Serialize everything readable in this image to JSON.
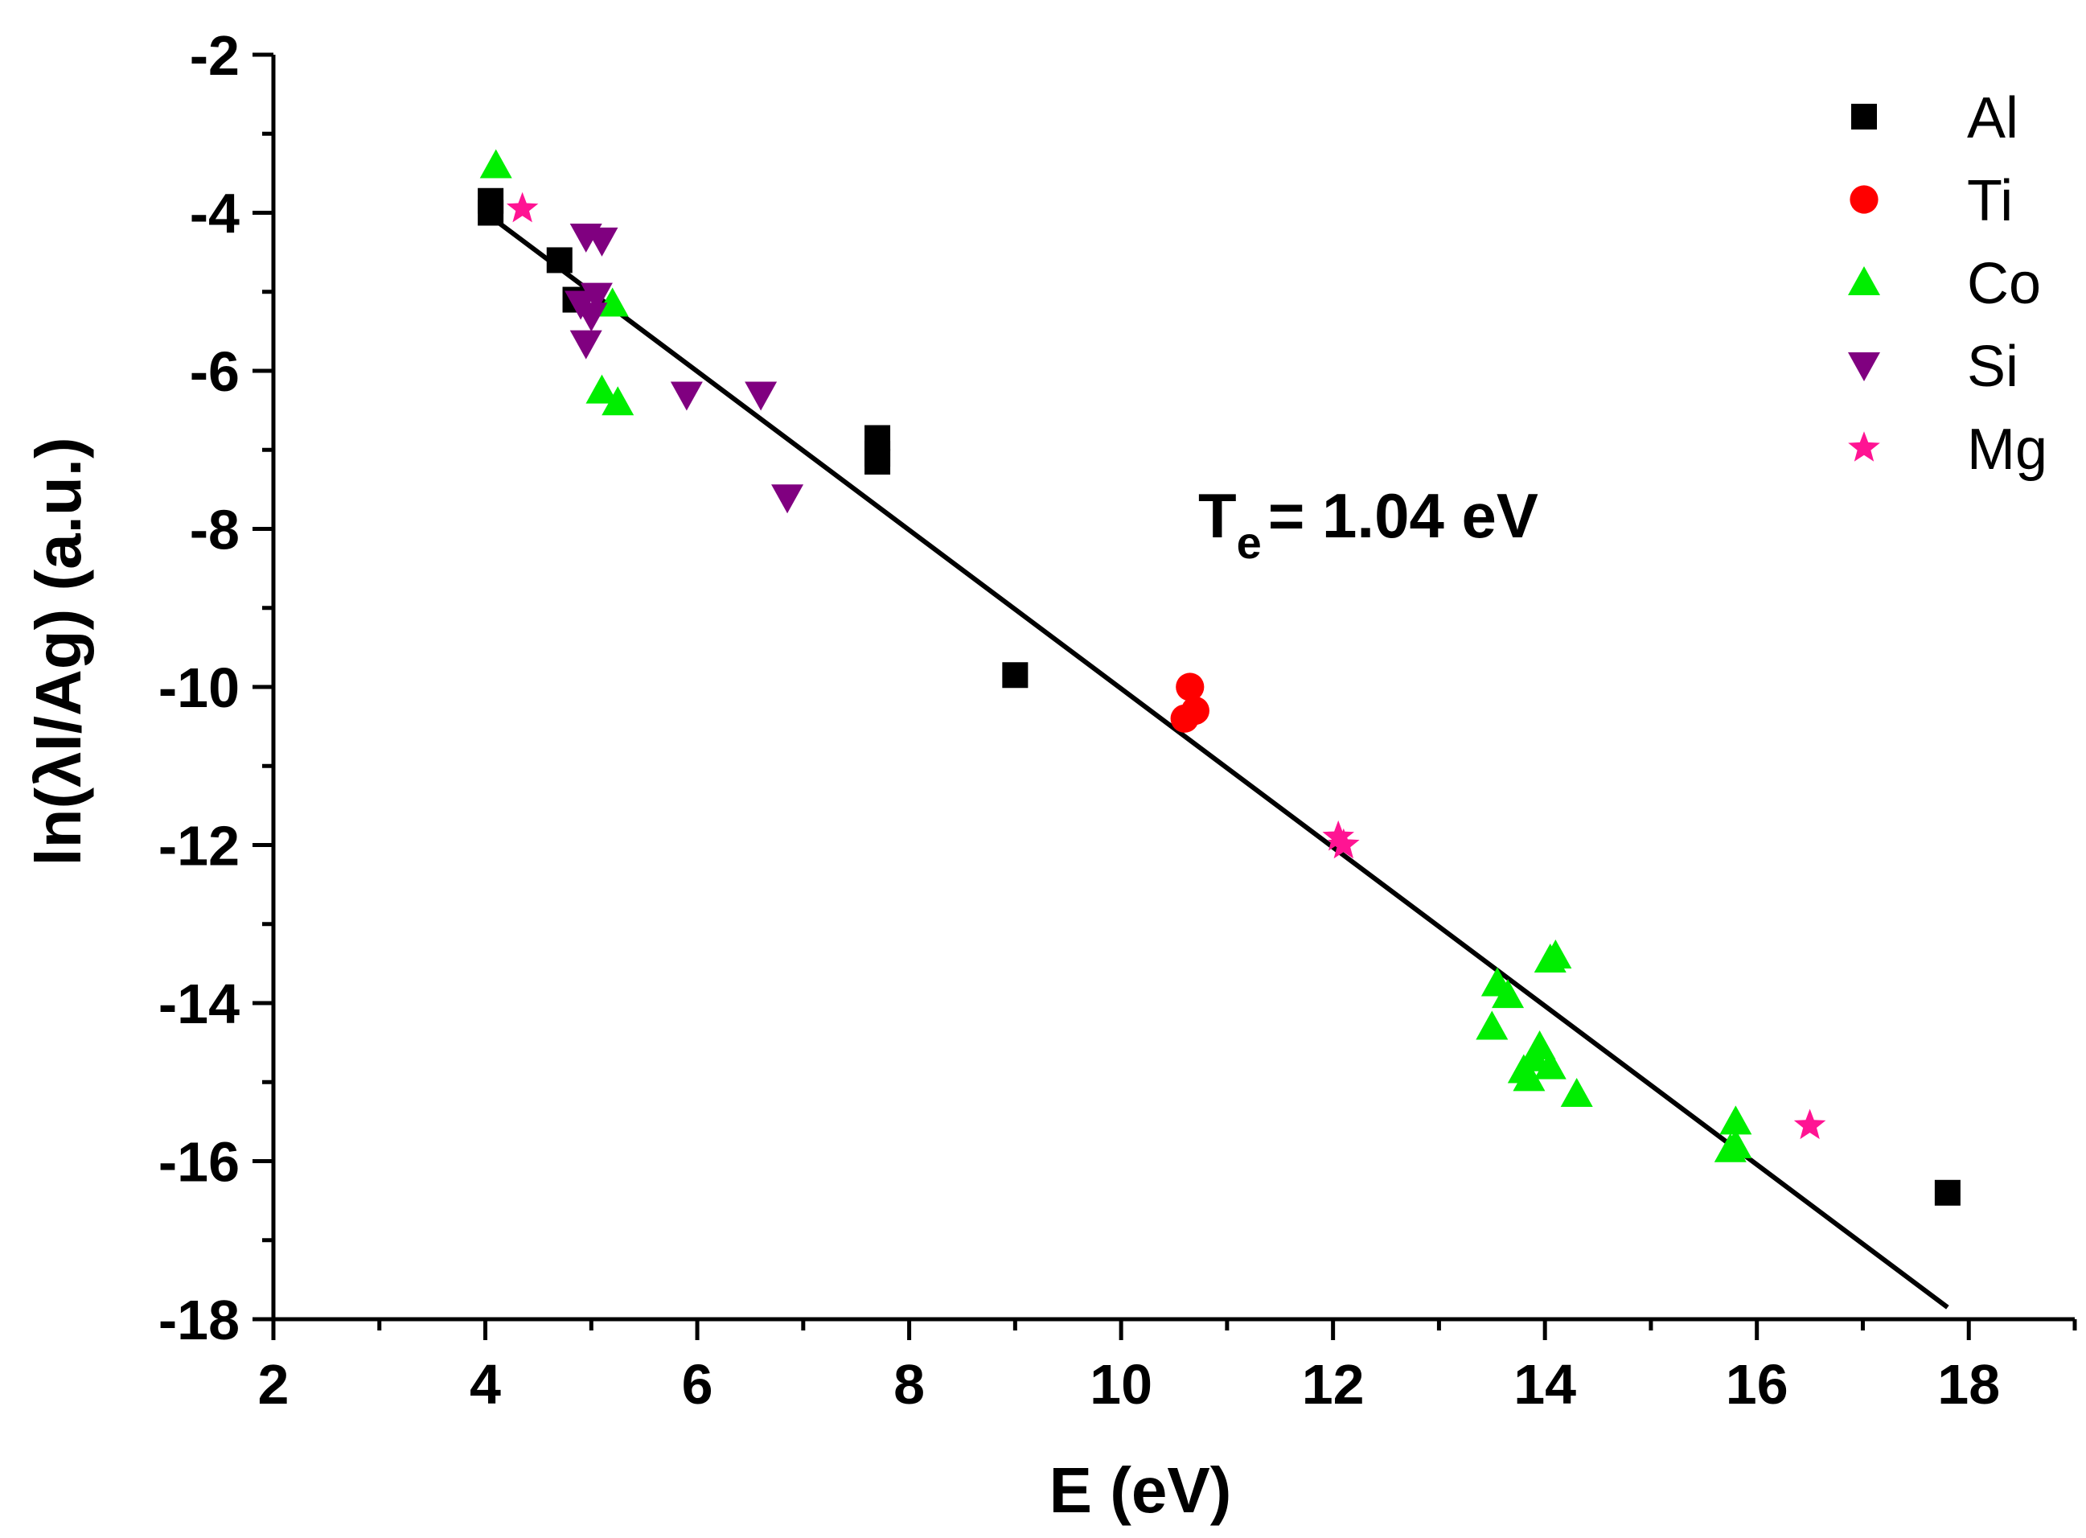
{
  "chart_data": {
    "type": "scatter",
    "title": "",
    "xlabel": "E (eV)",
    "ylabel": "ln(λI/Ag) (a.u.)",
    "xlim": [
      2,
      19
    ],
    "ylim": [
      -18,
      -2
    ],
    "xticks": [
      2,
      4,
      6,
      8,
      10,
      12,
      14,
      16,
      18
    ],
    "yticks": [
      -18,
      -16,
      -14,
      -12,
      -10,
      -8,
      -6,
      -4,
      -2
    ],
    "grid": false,
    "legend_position": "top-right",
    "annotation": {
      "main": "T",
      "sub": "e",
      "rest": "= 1.04 eV"
    },
    "fit_line": {
      "name": "linear fit",
      "x": [
        4.0,
        17.8
      ],
      "y": [
        -4.0,
        -17.85
      ],
      "color": "#000000"
    },
    "series": [
      {
        "name": "Al",
        "marker": "square",
        "color": "#000000",
        "points": [
          [
            4.05,
            -3.85
          ],
          [
            4.05,
            -4.0
          ],
          [
            4.7,
            -4.6
          ],
          [
            4.85,
            -5.1
          ],
          [
            7.7,
            -6.85
          ],
          [
            7.7,
            -7.05
          ],
          [
            7.7,
            -7.15
          ],
          [
            9.0,
            -9.85
          ],
          [
            17.8,
            -16.4
          ]
        ]
      },
      {
        "name": "Ti",
        "marker": "circle",
        "color": "#ff0000",
        "points": [
          [
            10.65,
            -10.0
          ],
          [
            10.7,
            -10.3
          ],
          [
            10.6,
            -10.4
          ]
        ]
      },
      {
        "name": "Co",
        "marker": "triangle-up",
        "color": "#00ee00",
        "points": [
          [
            4.1,
            -3.4
          ],
          [
            5.2,
            -5.15
          ],
          [
            5.1,
            -6.25
          ],
          [
            5.25,
            -6.4
          ],
          [
            13.55,
            -13.75
          ],
          [
            13.65,
            -13.9
          ],
          [
            14.05,
            -13.45
          ],
          [
            14.1,
            -13.4
          ],
          [
            13.5,
            -14.3
          ],
          [
            13.95,
            -14.55
          ],
          [
            13.9,
            -14.7
          ],
          [
            14.05,
            -14.8
          ],
          [
            13.8,
            -14.85
          ],
          [
            13.85,
            -14.95
          ],
          [
            14.3,
            -15.15
          ],
          [
            15.8,
            -15.5
          ],
          [
            15.8,
            -15.8
          ],
          [
            15.75,
            -15.85
          ]
        ]
      },
      {
        "name": "Si",
        "marker": "triangle-down",
        "color": "#800080",
        "points": [
          [
            4.95,
            -4.3
          ],
          [
            5.1,
            -4.35
          ],
          [
            5.05,
            -5.05
          ],
          [
            4.9,
            -5.15
          ],
          [
            5.0,
            -5.3
          ],
          [
            4.95,
            -5.65
          ],
          [
            5.9,
            -6.3
          ],
          [
            6.6,
            -6.3
          ],
          [
            6.85,
            -7.6
          ]
        ]
      },
      {
        "name": "Mg",
        "marker": "star",
        "color": "#ff1493",
        "points": [
          [
            4.35,
            -3.95
          ],
          [
            12.05,
            -11.9
          ],
          [
            12.1,
            -12.0
          ],
          [
            16.5,
            -15.55
          ]
        ]
      }
    ]
  }
}
